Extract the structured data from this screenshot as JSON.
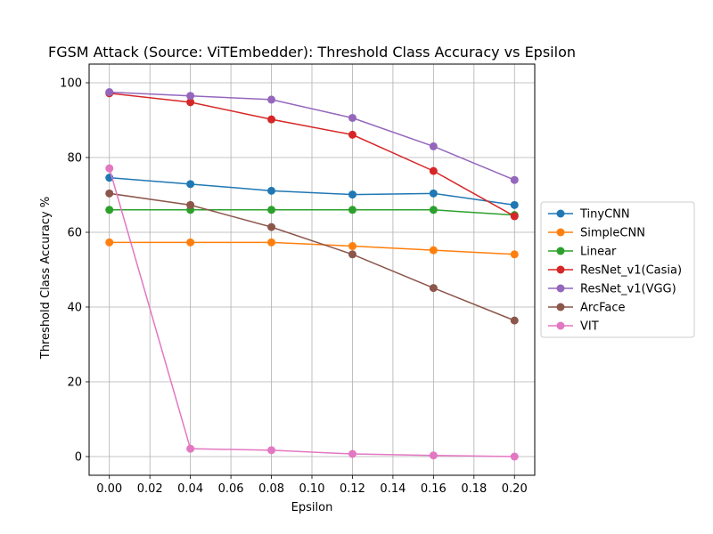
{
  "chart_data": {
    "type": "line",
    "title": "FGSM Attack (Source: ViTEmbedder): Threshold Class Accuracy vs Epsilon",
    "xlabel": "Epsilon",
    "ylabel": "Threshold Class Accuracy %",
    "x": [
      0.0,
      0.04,
      0.08,
      0.12,
      0.16,
      0.2
    ],
    "xticks": [
      0.0,
      0.02,
      0.04,
      0.06,
      0.08,
      0.1,
      0.12,
      0.14,
      0.16,
      0.18,
      0.2
    ],
    "xtick_labels": [
      "0.00",
      "0.02",
      "0.04",
      "0.06",
      "0.08",
      "0.10",
      "0.12",
      "0.14",
      "0.16",
      "0.18",
      "0.20"
    ],
    "yticks": [
      0,
      20,
      40,
      60,
      80,
      100
    ],
    "ytick_labels": [
      "0",
      "20",
      "40",
      "60",
      "80",
      "100"
    ],
    "xlim": [
      -0.01,
      0.21
    ],
    "ylim": [
      -5,
      105
    ],
    "grid": true,
    "legend_position": "right-outside",
    "series": [
      {
        "name": "TinyCNN",
        "color": "#1f77b4",
        "values": [
          74.6,
          72.9,
          71.1,
          70.1,
          70.4,
          67.3
        ]
      },
      {
        "name": "SimpleCNN",
        "color": "#ff7f0e",
        "values": [
          57.3,
          57.3,
          57.3,
          56.3,
          55.2,
          54.1
        ]
      },
      {
        "name": "Linear",
        "color": "#2ca02c",
        "values": [
          66.0,
          66.0,
          66.0,
          66.0,
          66.0,
          64.6
        ]
      },
      {
        "name": "ResNet_v1(Casia)",
        "color": "#d62728",
        "values": [
          97.2,
          94.8,
          90.2,
          86.1,
          76.4,
          64.3
        ]
      },
      {
        "name": "ResNet_v1(VGG)",
        "color": "#9467bd",
        "values": [
          97.5,
          96.5,
          95.5,
          90.6,
          83.0,
          74.0
        ]
      },
      {
        "name": "ArcFace",
        "color": "#8c564b",
        "values": [
          70.4,
          67.3,
          61.4,
          54.1,
          45.1,
          36.4
        ]
      },
      {
        "name": "VIT",
        "color": "#e377c2",
        "values": [
          77.1,
          2.1,
          1.7,
          0.7,
          0.3,
          0.0
        ]
      }
    ]
  }
}
